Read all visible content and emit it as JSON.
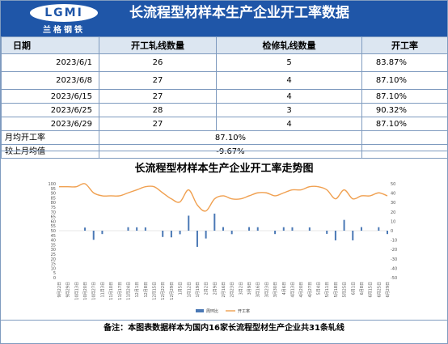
{
  "header": {
    "logo_text": "LGMI",
    "logo_subtext": "兰格钢铁",
    "title": "长流程型材样本生产企业开工率数据"
  },
  "table": {
    "columns": [
      "日期",
      "开工轧线数量",
      "检修轧线数量",
      "开工率"
    ],
    "rows": [
      [
        "2023/6/1",
        "26",
        "5",
        "83.87%"
      ],
      [
        "2023/6/8",
        "27",
        "4",
        "87.10%"
      ],
      [
        "2023/6/15",
        "27",
        "4",
        "87.10%"
      ],
      [
        "2023/6/25",
        "28",
        "3",
        "90.32%"
      ],
      [
        "2023/6/29",
        "27",
        "4",
        "87.10%"
      ]
    ],
    "monthly_avg_label": "月均开工率",
    "monthly_avg_value": "87.10%",
    "vs_last_month_label": "较上月均值",
    "vs_last_month_value": "-9.67%"
  },
  "chart_data": {
    "type": "bar+line",
    "title": "长流程型材样本生产企业开工率走势图",
    "legend_position": "bottom",
    "legend": [
      "周环比",
      "开工率"
    ],
    "colors": {
      "bar": "#4a78b5",
      "line": "#f0a050"
    },
    "left_axis": {
      "min": 0,
      "max": 100,
      "ticks": [
        0,
        5,
        10,
        15,
        20,
        25,
        30,
        35,
        40,
        45,
        50,
        55,
        60,
        65,
        70,
        75,
        80,
        85,
        90,
        95,
        100
      ]
    },
    "right_axis": {
      "min": -50,
      "max": 50,
      "ticks": [
        -50,
        -40,
        -30,
        -20,
        -10,
        0,
        10,
        20,
        30,
        40,
        50
      ]
    },
    "x": [
      "9月22日",
      "9月29日",
      "10月13日",
      "10月20日",
      "10月27日",
      "11月3日",
      "11月10日",
      "11月17日",
      "11月24日",
      "12月1日",
      "12月8日",
      "12月15日",
      "12月22日",
      "12月29日",
      "1月5日",
      "1月12日",
      "1月19日",
      "2月2日",
      "2月9日",
      "2月16日",
      "2月23日",
      "3月2日",
      "3月9日",
      "3月16日",
      "3月23日",
      "3月30日",
      "4月6日",
      "4月13日",
      "4月20日",
      "4月27日",
      "5月4日",
      "5月11日",
      "5月18日",
      "5月25日",
      "6月1日",
      "6月8日",
      "6月15日",
      "6月25日",
      "6月29日"
    ],
    "series": [
      {
        "name": "开工率",
        "values": [
          96.8,
          96.8,
          96.8,
          100,
          90.3,
          87.1,
          87.1,
          87.1,
          90.3,
          93.5,
          96.8,
          96.8,
          90.3,
          83.9,
          80.6,
          93.5,
          77.4,
          71,
          83.9,
          87.1,
          83.9,
          83.9,
          87.1,
          90.3,
          90.3,
          87.1,
          90.3,
          93.5,
          93.5,
          96.8,
          96.8,
          93.5,
          83.9,
          93.5,
          83.9,
          87.1,
          87.1,
          90.3,
          87.1
        ]
      },
      {
        "name": "周环比",
        "values": [
          0,
          0,
          0,
          3.3,
          -9.7,
          -3.6,
          0,
          0,
          3.7,
          3.6,
          3.5,
          0,
          -6.7,
          -7.1,
          -3.8,
          16,
          -17.2,
          -8.3,
          18.2,
          3.8,
          -3.7,
          0,
          3.8,
          3.7,
          0,
          -3.6,
          3.7,
          3.6,
          0,
          3.5,
          0,
          -3.4,
          -10.3,
          11.5,
          -10.3,
          3.8,
          0,
          3.7,
          -3.6
        ]
      }
    ]
  },
  "footer": {
    "note": "备注：本图表数据样本为国内16家长流程型材生产企业共31条轧线"
  }
}
